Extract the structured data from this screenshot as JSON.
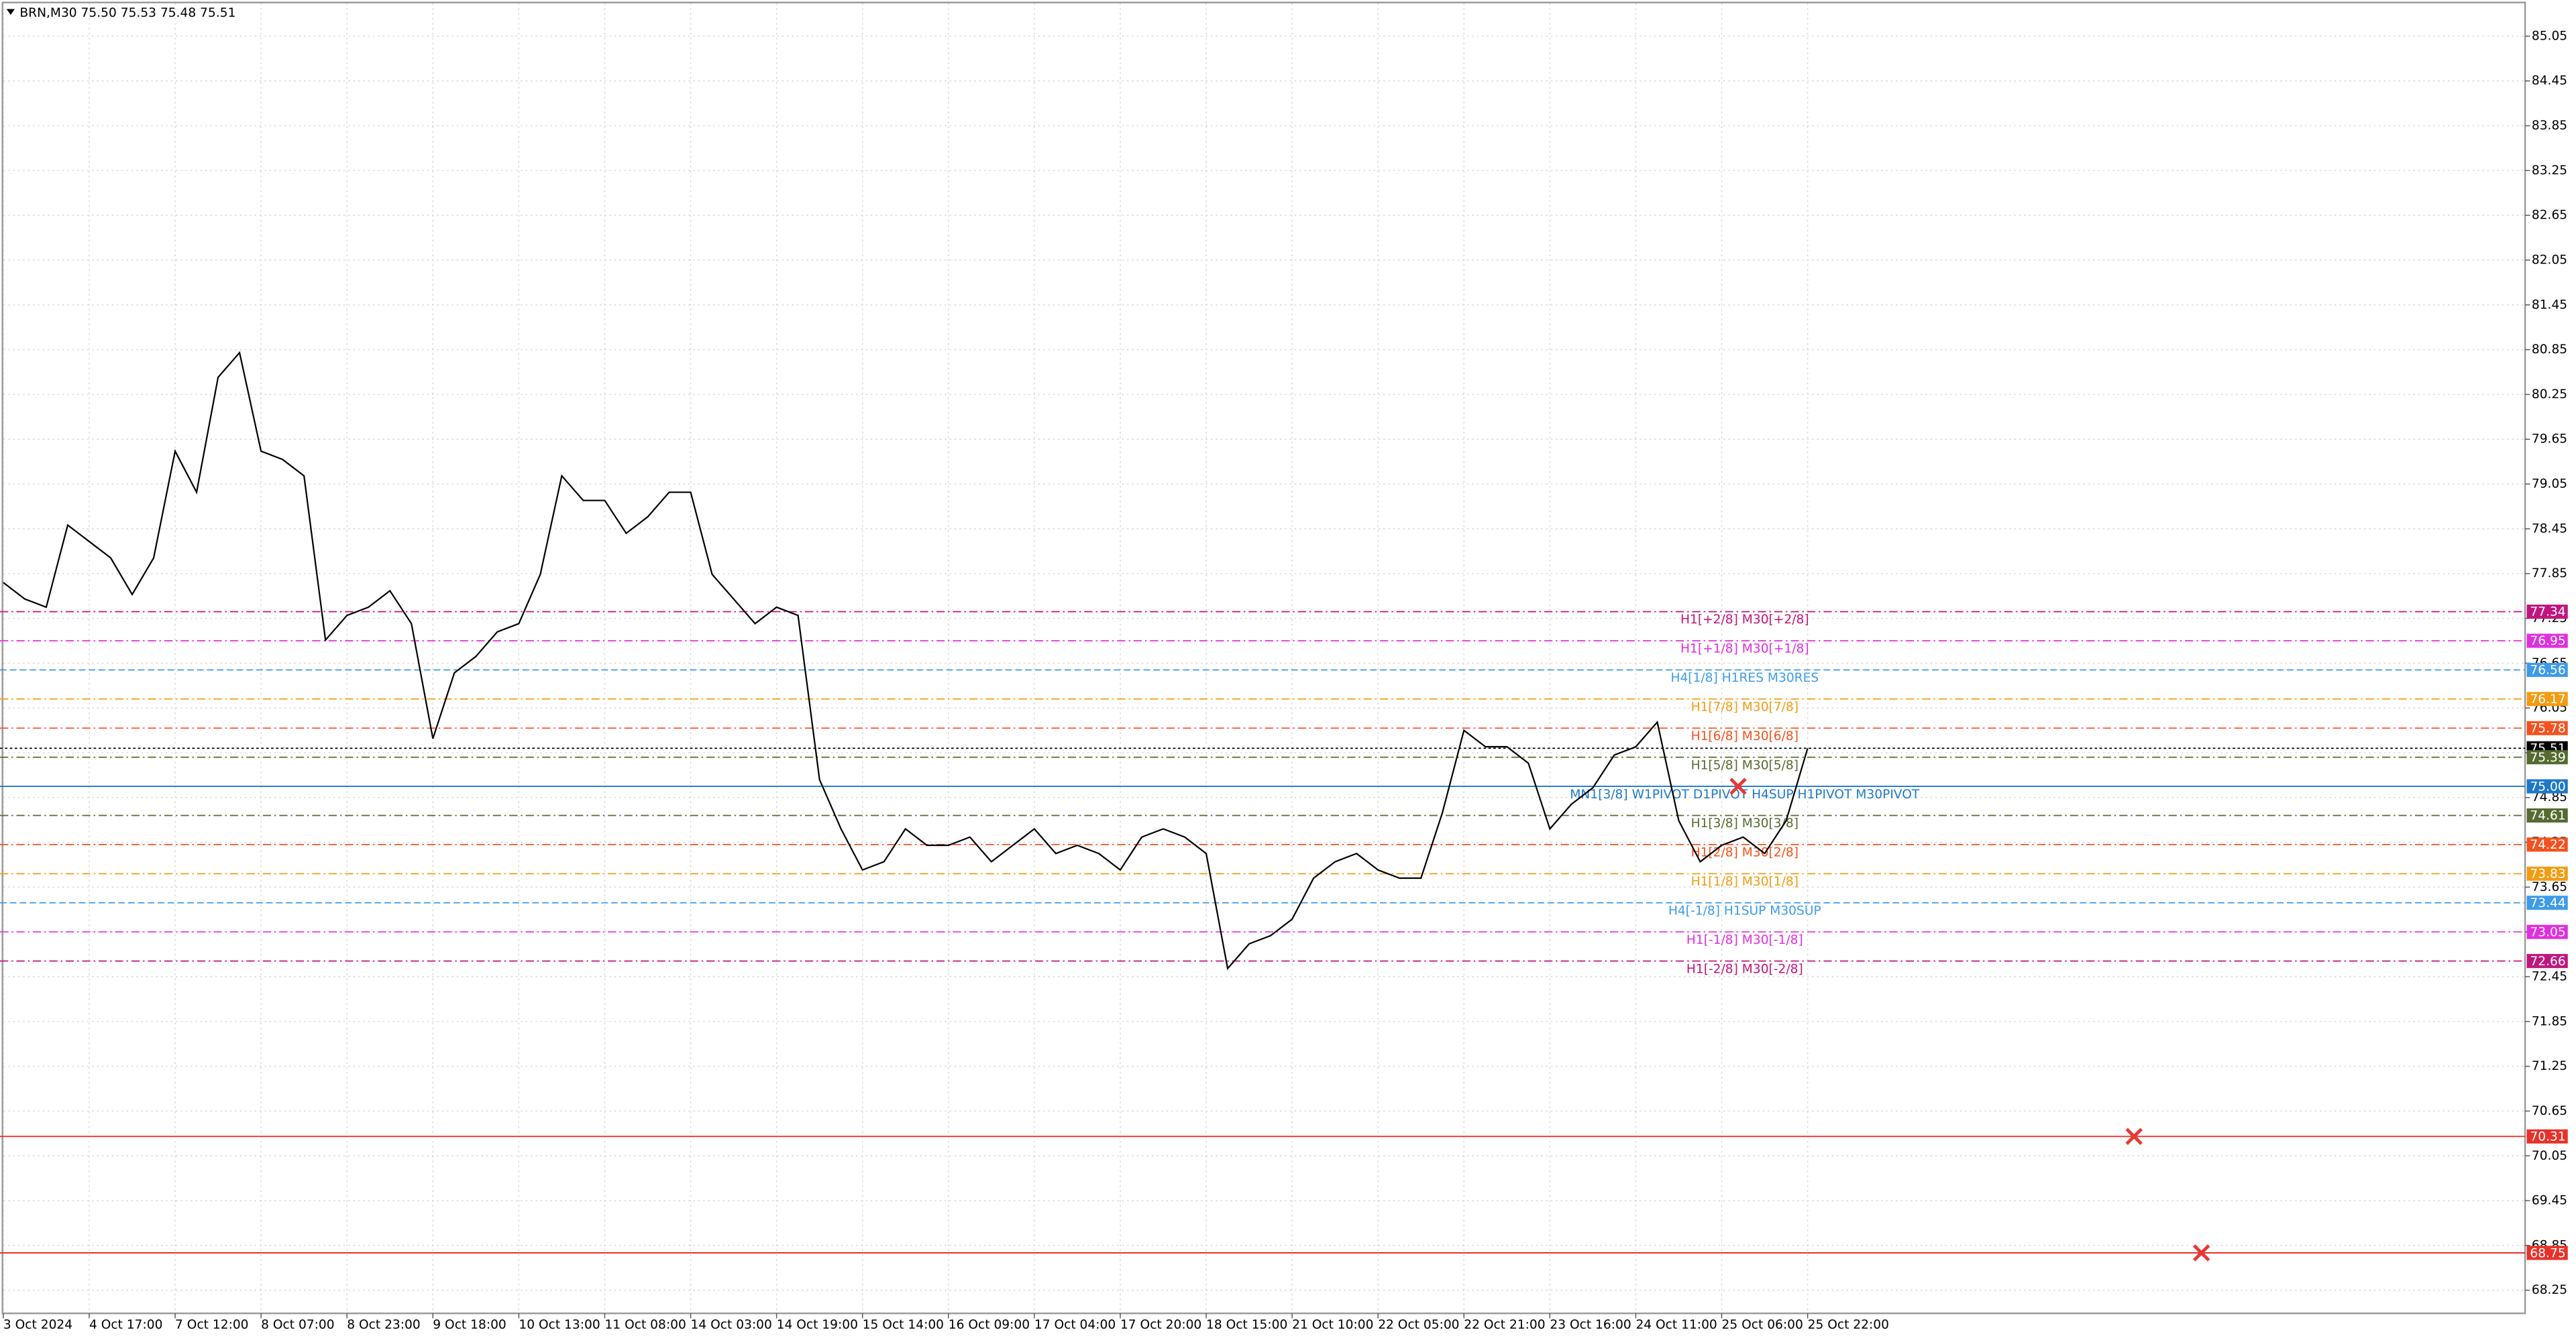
{
  "header": "BRN,M30  75.50 75.53 75.48 75.51",
  "chart_data": {
    "type": "line",
    "categories": [
      "3 Oct 2024",
      null,
      null,
      null,
      "4 Oct 17:00",
      null,
      null,
      null,
      "7 Oct 12:00",
      null,
      null,
      null,
      "8 Oct 07:00",
      null,
      null,
      null,
      "8 Oct 23:00",
      null,
      null,
      null,
      "9 Oct 18:00",
      null,
      null,
      null,
      "10 Oct 13:00",
      null,
      null,
      null,
      "11 Oct 08:00",
      null,
      null,
      null,
      "14 Oct 03:00",
      null,
      null,
      null,
      "14 Oct 19:00",
      null,
      null,
      null,
      "15 Oct 14:00",
      null,
      null,
      null,
      "16 Oct 09:00",
      null,
      null,
      null,
      "17 Oct 04:00",
      null,
      null,
      null,
      "17 Oct 20:00",
      null,
      null,
      null,
      "18 Oct 15:00",
      null,
      null,
      null,
      "21 Oct 10:00",
      null,
      null,
      null,
      "22 Oct 05:00",
      null,
      null,
      null,
      "22 Oct 21:00",
      null,
      null,
      null,
      "23 Oct 16:00",
      null,
      null,
      null,
      "24 Oct 11:00",
      null,
      null,
      null,
      "25 Oct 06:00",
      null,
      null,
      null,
      "25 Oct 22:00"
    ],
    "series": [
      {
        "color": "#000000",
        "values": [
          77.73,
          77.51,
          77.4,
          78.5,
          78.28,
          78.06,
          77.57,
          78.06,
          79.49,
          78.94,
          80.48,
          80.81,
          79.49,
          79.38,
          79.16,
          76.96,
          77.29,
          77.4,
          77.62,
          77.18,
          75.64,
          76.52,
          76.74,
          77.07,
          77.18,
          77.84,
          79.16,
          78.83,
          78.83,
          78.39,
          78.61,
          78.94,
          78.94,
          77.84,
          77.51,
          77.18,
          77.4,
          77.29,
          75.09,
          74.43,
          73.88,
          73.99,
          74.43,
          74.21,
          74.21,
          74.32,
          73.99,
          74.21,
          74.43,
          74.1,
          74.21,
          74.1,
          73.88,
          74.32,
          74.43,
          74.32,
          74.1,
          72.56,
          72.89,
          73.0,
          73.22,
          73.77,
          73.99,
          74.1,
          73.88,
          73.77,
          73.77,
          74.65,
          75.75,
          75.53,
          75.53,
          75.31,
          74.43,
          74.76,
          74.98,
          75.42,
          75.53,
          75.86,
          74.54,
          73.99,
          74.21,
          74.32,
          74.1,
          74.54,
          75.51
        ]
      }
    ],
    "ylim": [
      67.94,
      85.49
    ],
    "yticks": [
      85.05,
      84.45,
      83.85,
      83.25,
      82.65,
      82.05,
      81.45,
      80.85,
      80.25,
      79.65,
      79.05,
      78.45,
      77.85,
      77.25,
      76.65,
      76.05,
      75.45,
      74.85,
      74.25,
      73.65,
      73.05,
      72.45,
      71.85,
      71.25,
      70.65,
      70.05,
      69.45,
      68.85,
      68.25
    ],
    "grid": true,
    "levels": [
      {
        "price": 77.34,
        "name": "H1[+2/8] M30[+2/8]",
        "color": "#c0157f",
        "style": "dashdot"
      },
      {
        "price": 76.95,
        "name": "H1[+1/8] M30[+1/8]",
        "color": "#e02ee0",
        "style": "dashdot"
      },
      {
        "price": 76.56,
        "name": "H4[1/8] H1RES M30RES",
        "color": "#3d9be9",
        "style": "dash"
      },
      {
        "price": 76.17,
        "name": "H1[7/8] M30[7/8]",
        "color": "#f39c12",
        "style": "dashdot"
      },
      {
        "price": 75.78,
        "name": "H1[6/8] M30[6/8]",
        "color": "#f4511e",
        "style": "dashdot"
      },
      {
        "price": 75.51,
        "color": "#000000",
        "style": "dot"
      },
      {
        "price": 75.39,
        "name": "H1[5/8] M30[5/8]",
        "color": "#556b2f",
        "style": "dashdot"
      },
      {
        "price": {
          "value": 75,
          "label": "75.00"
        },
        "name": "MN1[3/8] W1PIVOT D1PIVOT H4SUP H1PIVOT M30PIVOT",
        "color": "#1e78c8",
        "style": "solid",
        "cross": true
      },
      {
        "price": 74.61,
        "name": "H1[3/8] M30[3/8]",
        "color": "#556b2f",
        "style": "dashdot"
      },
      {
        "price": 74.22,
        "name": "H1[2/8] M30[2/8]",
        "color": "#f4511e",
        "style": "dashdot"
      },
      {
        "price": 73.83,
        "name": "H1[1/8] M30[1/8]",
        "color": "#f39c12",
        "style": "dashdot"
      },
      {
        "price": 73.44,
        "name": "H4[-1/8] H1SUP M30SUP",
        "color": "#3d9be9",
        "style": "dash"
      },
      {
        "price": 73.05,
        "name": "H1[-1/8] M30[-1/8]",
        "color": "#e02ee0",
        "style": "dashdot"
      },
      {
        "price": 72.66,
        "name": "H1[-2/8] M30[-2/8]",
        "color": "#c0157f",
        "style": "dashdot"
      },
      {
        "price": 70.31,
        "color": "#e8302a",
        "style": "solid",
        "cross": true
      },
      {
        "price": 68.75,
        "color": "#e8302a",
        "style": "solid",
        "cross": true
      }
    ]
  }
}
